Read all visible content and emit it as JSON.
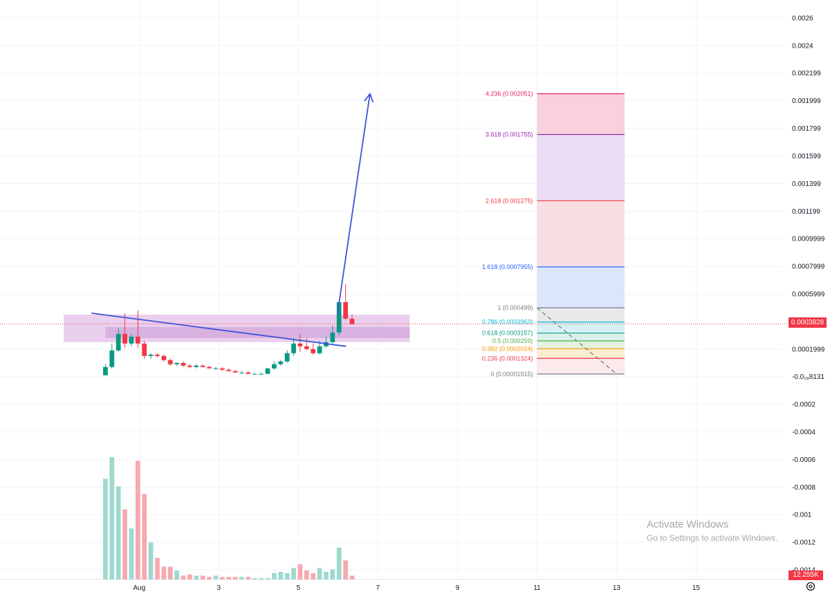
{
  "chart_data": {
    "type": "candlestick",
    "y_ticks": [
      "0.0026",
      "0.0024",
      "0.002199",
      "0.001999",
      "0.001799",
      "0.001599",
      "0.001399",
      "0.001199",
      "0.0009999",
      "0.0007999",
      "0.0005999",
      "0.0001999",
      "-0.0₁₈8131",
      "-0.0002",
      "-0.0004",
      "-0.0006",
      "-0.0008",
      "-0.001",
      "-0.0012",
      "-0.0014"
    ],
    "y_tick_values": [
      0.0026,
      0.0024,
      0.0022,
      0.002,
      0.0018,
      0.0016,
      0.0014,
      0.0012,
      0.001,
      0.0008,
      0.0006,
      0.0002,
      0.0,
      -0.0002,
      -0.0004,
      -0.0006,
      -0.0008,
      -0.001,
      -0.0012,
      -0.0014
    ],
    "x_ticks": [
      "Aug",
      "3",
      "5",
      "7",
      "9",
      "11",
      "13",
      "15"
    ],
    "x_tick_days": [
      1,
      3,
      5,
      7,
      9,
      11,
      13,
      15
    ],
    "ylim": [
      -0.00147,
      0.00273
    ],
    "xlim": [
      -2.5,
      17.2
    ],
    "current_price": "0.0003828",
    "current_price_value": 0.0003828,
    "volume_label": "12.255K",
    "colors": {
      "up": "#089981",
      "down": "#f23645",
      "up_vol": "#9dd9cd",
      "down_vol": "#f7a9b1",
      "trend": "#3f51d8",
      "zone": "#d9a8e0"
    },
    "candles": [
      {
        "o": 1e-05,
        "h": 9e-05,
        "l": 1e-05,
        "c": 7e-05
      },
      {
        "o": 7e-05,
        "h": 0.00024,
        "l": 6e-05,
        "c": 0.00019
      },
      {
        "o": 0.00019,
        "h": 0.00035,
        "l": 0.00018,
        "c": 0.00031
      },
      {
        "o": 0.00031,
        "h": 0.00046,
        "l": 0.00021,
        "c": 0.00024
      },
      {
        "o": 0.00024,
        "h": 0.00031,
        "l": 0.00022,
        "c": 0.00029
      },
      {
        "o": 0.00029,
        "h": 0.00048,
        "l": 0.00021,
        "c": 0.00024
      },
      {
        "o": 0.00024,
        "h": 0.00026,
        "l": 0.00013,
        "c": 0.00015
      },
      {
        "o": 0.00015,
        "h": 0.00017,
        "l": 0.00013,
        "c": 0.00016
      },
      {
        "o": 0.00016,
        "h": 0.00017,
        "l": 0.00014,
        "c": 0.00015
      },
      {
        "o": 0.00015,
        "h": 0.00016,
        "l": 0.00011,
        "c": 0.00012
      },
      {
        "o": 0.00012,
        "h": 0.00013,
        "l": 8e-05,
        "c": 9e-05
      },
      {
        "o": 9e-05,
        "h": 0.0001,
        "l": 8e-05,
        "c": 0.0001
      },
      {
        "o": 0.0001,
        "h": 0.00011,
        "l": 7e-05,
        "c": 8e-05
      },
      {
        "o": 8e-05,
        "h": 9e-05,
        "l": 6e-05,
        "c": 7e-05
      },
      {
        "o": 7e-05,
        "h": 9e-05,
        "l": 6e-05,
        "c": 8e-05
      },
      {
        "o": 8e-05,
        "h": 9e-05,
        "l": 7e-05,
        "c": 7e-05
      },
      {
        "o": 7e-05,
        "h": 8e-05,
        "l": 6e-05,
        "c": 6e-05
      },
      {
        "o": 6e-05,
        "h": 7e-05,
        "l": 5e-05,
        "c": 6e-05
      },
      {
        "o": 6e-05,
        "h": 7e-05,
        "l": 4e-05,
        "c": 5e-05
      },
      {
        "o": 5e-05,
        "h": 6e-05,
        "l": 4e-05,
        "c": 4e-05
      },
      {
        "o": 4e-05,
        "h": 5e-05,
        "l": 3e-05,
        "c": 3e-05
      },
      {
        "o": 3e-05,
        "h": 4e-05,
        "l": 2e-05,
        "c": 3e-05
      },
      {
        "o": 3e-05,
        "h": 4e-05,
        "l": 2e-05,
        "c": 2e-05
      },
      {
        "o": 2e-05,
        "h": 3e-05,
        "l": 2e-05,
        "c": 2e-05
      },
      {
        "o": 2e-05,
        "h": 3e-05,
        "l": 2e-05,
        "c": 2e-05
      },
      {
        "o": 2e-05,
        "h": 6e-05,
        "l": 2e-05,
        "c": 6e-05
      },
      {
        "o": 6e-05,
        "h": 0.00011,
        "l": 5e-05,
        "c": 9e-05
      },
      {
        "o": 9e-05,
        "h": 0.00012,
        "l": 8e-05,
        "c": 0.00011
      },
      {
        "o": 0.00011,
        "h": 0.00019,
        "l": 0.0001,
        "c": 0.00017
      },
      {
        "o": 0.00017,
        "h": 0.00028,
        "l": 0.00015,
        "c": 0.00024
      },
      {
        "o": 0.00024,
        "h": 0.00031,
        "l": 0.00018,
        "c": 0.00022
      },
      {
        "o": 0.00022,
        "h": 0.00028,
        "l": 0.00019,
        "c": 0.0002
      },
      {
        "o": 0.0002,
        "h": 0.00024,
        "l": 0.00016,
        "c": 0.00017
      },
      {
        "o": 0.00017,
        "h": 0.00026,
        "l": 0.00016,
        "c": 0.00022
      },
      {
        "o": 0.00022,
        "h": 0.00029,
        "l": 0.00021,
        "c": 0.00025
      },
      {
        "o": 0.00025,
        "h": 0.00037,
        "l": 0.00024,
        "c": 0.00032
      },
      {
        "o": 0.00032,
        "h": 0.00055,
        "l": 0.0003,
        "c": 0.00054
      },
      {
        "o": 0.00054,
        "h": 0.00067,
        "l": 0.00041,
        "c": 0.00042
      },
      {
        "o": 0.00042,
        "h": 0.00045,
        "l": 0.00038,
        "c": 0.00038
      }
    ],
    "volumes": [
      7.9,
      9.6,
      7.3,
      5.5,
      4.0,
      9.3,
      6.7,
      2.9,
      1.7,
      1.0,
      1.0,
      0.7,
      0.3,
      0.4,
      0.3,
      0.3,
      0.2,
      0.3,
      0.2,
      0.2,
      0.2,
      0.2,
      0.2,
      0.1,
      0.1,
      0.1,
      0.5,
      0.6,
      0.5,
      0.9,
      1.2,
      0.7,
      0.5,
      0.9,
      0.6,
      0.8,
      2.5,
      1.5,
      0.3
    ],
    "volume_max": 12.255,
    "fib_levels": [
      {
        "label": "4.236 (0.002051)",
        "value": 0.002051,
        "color": "#e91e63",
        "fill": "#f7c4d3"
      },
      {
        "label": "3.618 (0.001755)",
        "value": 0.001755,
        "color": "#9c27b0",
        "fill": "#e3d3f0"
      },
      {
        "label": "2.618 (0.001275)",
        "value": 0.001275,
        "color": "#f23645",
        "fill": "#f8d6dc"
      },
      {
        "label": "1.618 (0.0007955)",
        "value": 0.0007955,
        "color": "#2962ff",
        "fill": "#d2e0fb"
      },
      {
        "label": "1 (0.000499)",
        "value": 0.000499,
        "color": "#787b86",
        "fill": "#e4e4e6"
      },
      {
        "label": "0.786 (0.0003963)",
        "value": 0.0003963,
        "color": "#00bcd4",
        "fill": "#cdeef2"
      },
      {
        "label": "0.618 (0.0003157)",
        "value": 0.0003157,
        "color": "#089981",
        "fill": "#d4ede6"
      },
      {
        "label": "0.5 (0.000259)",
        "value": 0.000259,
        "color": "#4caf50",
        "fill": "#dcefd6"
      },
      {
        "label": "0.382 (0.0002024)",
        "value": 0.0002024,
        "color": "#ff9800",
        "fill": "#fbe9c7"
      },
      {
        "label": "0.236 (0.0001324)",
        "value": 0.0001324,
        "color": "#f23645",
        "fill": "#fbe3e6"
      },
      {
        "label": "0 (0.00001915)",
        "value": 1.915e-05,
        "color": "#787b86",
        "fill": "none"
      }
    ],
    "fib_x_range": [
      11.0,
      13.2
    ],
    "zone": {
      "x1": -0.9,
      "x2": 7.8,
      "y1": 0.00045,
      "y2": 0.00025
    },
    "zone_inner": {
      "x1": 0.15,
      "x2": 7.8,
      "y1": 0.00036,
      "y2": 0.00028
    },
    "trendline": {
      "x1": -0.2,
      "y1": 0.00046,
      "x2": 6.2,
      "y2": 0.00022
    },
    "arrow": {
      "x1": 5.98,
      "y1": 0.00045,
      "x2": 6.8,
      "y2": 0.00205
    },
    "dashed_fib_link": {
      "x1": 11.0,
      "y1": 0.000499,
      "x2": 13.0,
      "y2": 1.915e-05
    },
    "watermark": {
      "title": "Activate Windows",
      "subtitle": "Go to Settings to activate Windows."
    }
  }
}
